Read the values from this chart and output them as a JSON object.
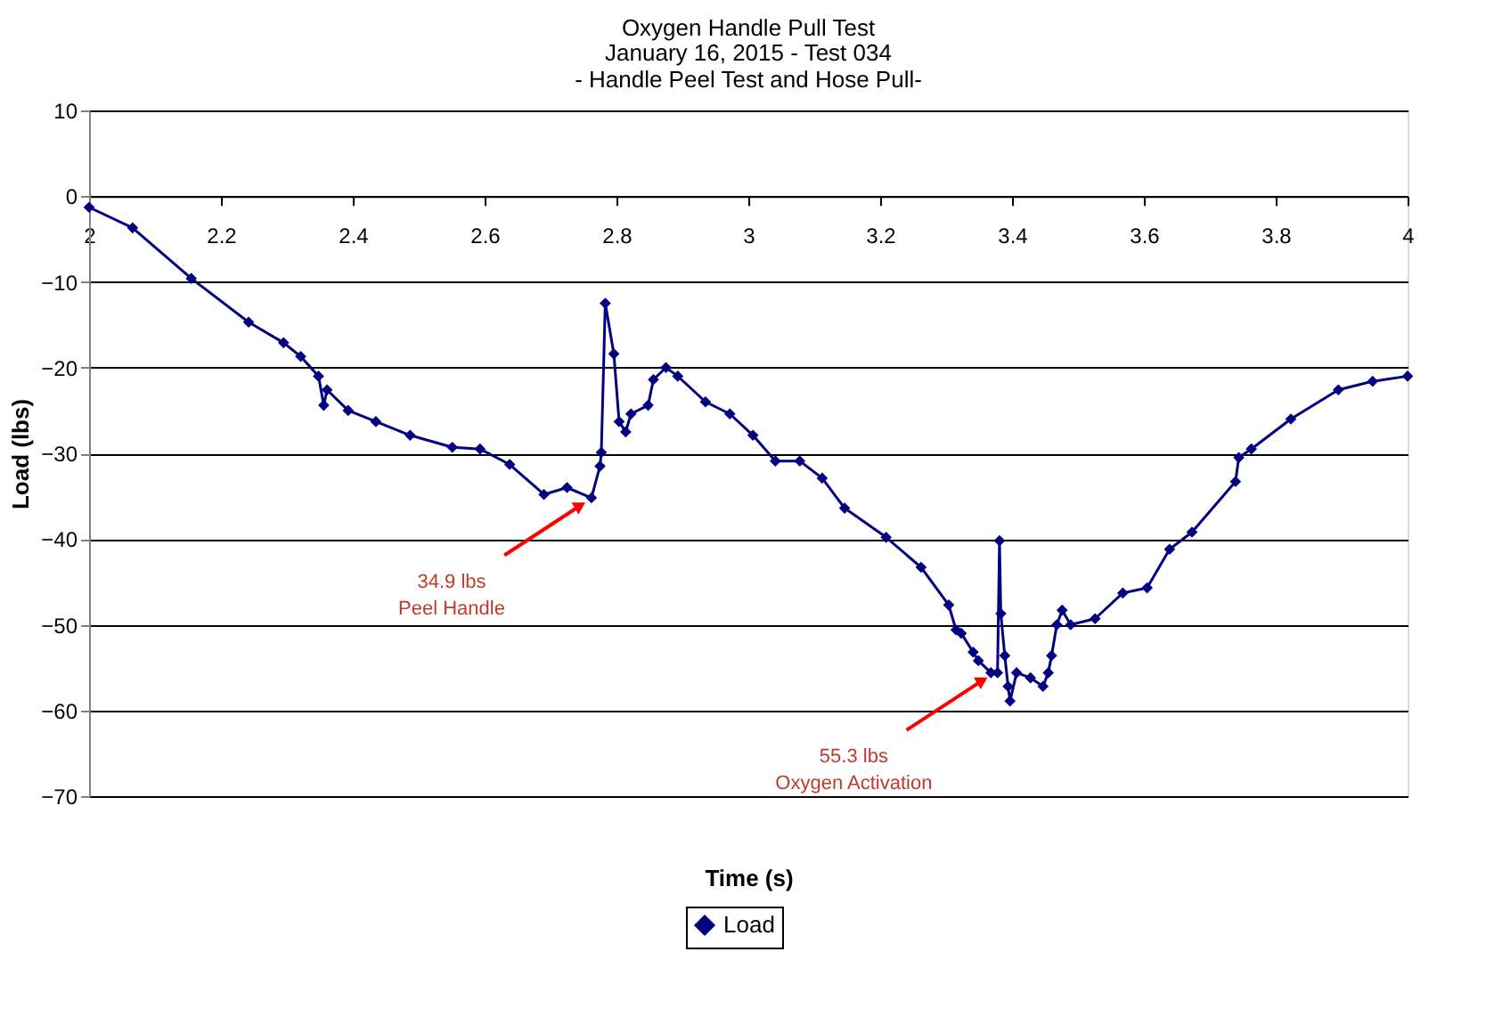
{
  "chart_data": {
    "type": "line",
    "title": "Oxygen Handle Pull Test",
    "subtitle": "January 16, 2015 - Test 034\n- Handle Peel Test  and Hose Pull-",
    "xlabel": "Time (s)",
    "ylabel": "Load (lbs)",
    "xlim": [
      2,
      4
    ],
    "xticks": [
      2,
      2.2,
      2.4,
      2.6,
      2.8,
      3,
      3.2,
      3.4,
      3.6,
      3.8,
      4
    ],
    "ylim": [
      -70,
      10
    ],
    "yticks": [
      -70,
      -60,
      -50,
      -40,
      -30,
      -20,
      -10,
      0,
      10
    ],
    "grid": "y",
    "legend": "bottom",
    "marker": "diamond",
    "line_style": "solid",
    "annotations": [
      {
        "text": "34.9 lbs\nPeel Handle",
        "x": 2.76,
        "y": -34.9
      },
      {
        "text": "55.3 lbs\nOxygen Activation",
        "x": 3.37,
        "y": -55.3
      }
    ],
    "series": [
      {
        "name": "Load",
        "color": "#000080",
        "x": [
          2.0,
          2.066,
          2.155,
          2.242,
          2.295,
          2.321,
          2.348,
          2.356,
          2.361,
          2.393,
          2.435,
          2.487,
          2.551,
          2.593,
          2.638,
          2.69,
          2.725,
          2.762,
          2.775,
          2.777,
          2.783,
          2.796,
          2.804,
          2.814,
          2.822,
          2.848,
          2.856,
          2.875,
          2.893,
          2.935,
          2.972,
          3.007,
          3.041,
          3.078,
          3.112,
          3.146,
          3.209,
          3.262,
          3.304,
          3.315,
          3.323,
          3.341,
          3.349,
          3.368,
          3.378,
          3.381,
          3.383,
          3.389,
          3.394,
          3.397,
          3.407,
          3.428,
          3.447,
          3.455,
          3.46,
          3.468,
          3.476,
          3.489,
          3.526,
          3.568,
          3.605,
          3.639,
          3.673,
          3.739,
          3.744,
          3.763,
          3.823,
          3.895,
          3.947,
          4.0
        ],
        "values": [
          -1.3,
          -3.7,
          -9.6,
          -14.7,
          -17.1,
          -18.7,
          -21.0,
          -24.4,
          -22.6,
          -25.0,
          -26.3,
          -27.9,
          -29.3,
          -29.5,
          -31.3,
          -34.8,
          -34.0,
          -35.2,
          -31.5,
          -29.9,
          -12.5,
          -18.4,
          -26.3,
          -27.5,
          -25.4,
          -24.4,
          -21.4,
          -20.0,
          -21.0,
          -24.0,
          -25.4,
          -27.9,
          -30.9,
          -30.9,
          -32.9,
          -36.4,
          -39.8,
          -43.3,
          -47.7,
          -50.6,
          -51.0,
          -53.2,
          -54.2,
          -55.6,
          -55.6,
          -40.2,
          -48.7,
          -53.6,
          -57.2,
          -58.9,
          -55.6,
          -56.2,
          -57.2,
          -55.6,
          -53.6,
          -50.0,
          -48.3,
          -50.0,
          -49.3,
          -46.3,
          -45.7,
          -41.2,
          -39.2,
          -33.3,
          -30.5,
          -29.5,
          -26.0,
          -22.6,
          -21.6,
          -21.0
        ]
      }
    ]
  }
}
